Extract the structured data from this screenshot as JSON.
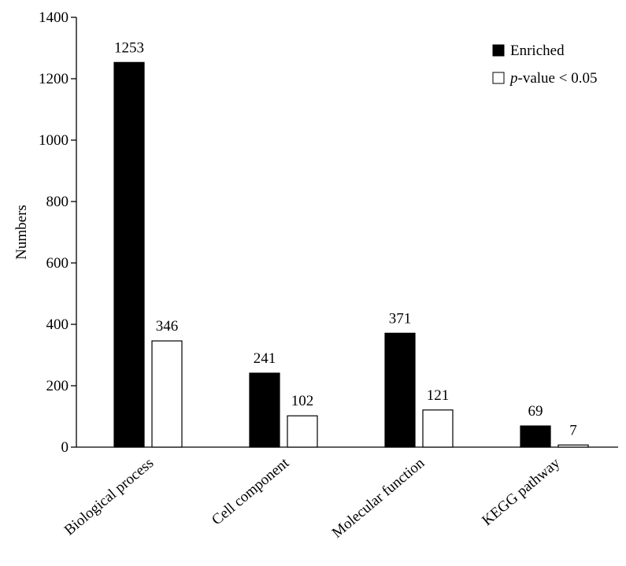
{
  "chart_data": {
    "type": "bar",
    "title": "",
    "xlabel": "",
    "ylabel": "Numbers",
    "ylim": [
      0,
      1400
    ],
    "yticks": [
      0,
      200,
      400,
      600,
      800,
      1000,
      1200,
      1400
    ],
    "grid": false,
    "legend_position": "top-right",
    "categories": [
      "Biological process",
      "Cell component",
      "Molecular function",
      "KEGG pathway"
    ],
    "series": [
      {
        "name": "Enriched",
        "values": [
          1253,
          241,
          371,
          69
        ],
        "color": "#000000"
      },
      {
        "name": "-value < 0.05",
        "name_prefix_italic": "p",
        "values": [
          346,
          102,
          121,
          7
        ],
        "color": "#ffffff"
      }
    ]
  }
}
